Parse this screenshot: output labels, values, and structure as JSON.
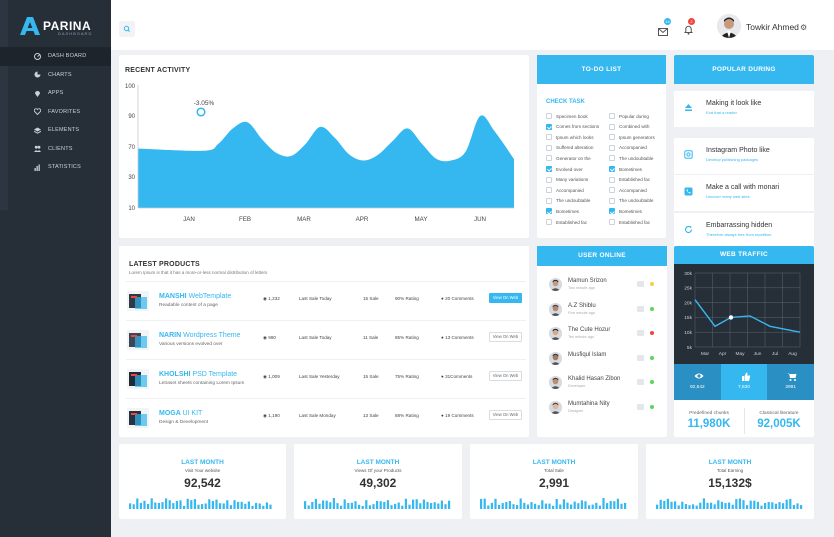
{
  "brand": {
    "name": "PARINA",
    "sub": "DASHBOARD"
  },
  "nav": [
    {
      "label": "DASH BOARD",
      "icon": "dashboard-icon",
      "active": true
    },
    {
      "label": "CHARTS",
      "icon": "pie-chart-icon"
    },
    {
      "label": "APPS",
      "icon": "map-pin-icon"
    },
    {
      "label": "FAVORITES",
      "icon": "heart-icon"
    },
    {
      "label": "ELEMENTS",
      "icon": "layers-icon"
    },
    {
      "label": "CLIENTS",
      "icon": "users-icon"
    },
    {
      "label": "STATISTICS",
      "icon": "bar-chart-icon"
    }
  ],
  "topbar": {
    "mail_badge": "14",
    "bell_badge": "2",
    "user_name": "Towkir Ahmed"
  },
  "colors": {
    "accent": "#35b7f0",
    "sidebar": "#262e38",
    "green": "#5fd35c",
    "red": "#f0463c",
    "yellow": "#f5d23b"
  },
  "recent_activity": {
    "title": "RECENT ACTIVITY",
    "annotation": "-3.05%",
    "chart_data": {
      "type": "area",
      "title": "RECENT ACTIVITY",
      "x_ticks": [
        "JAN",
        "FEB",
        "MAR",
        "APR",
        "MAY",
        "JUN"
      ],
      "y_ticks": [
        100,
        90,
        70,
        30,
        10
      ],
      "x": [
        0,
        0.25,
        0.5,
        0.75,
        1,
        1.25,
        1.5,
        1.75,
        2,
        2.25,
        2.5,
        2.75,
        3,
        3.25,
        3.5,
        3.75,
        4,
        4.25,
        4.5,
        4.75,
        5,
        5.25,
        5.5
      ],
      "values": [
        68,
        65,
        72,
        82,
        86,
        75,
        62,
        58,
        72,
        83,
        76,
        60,
        52,
        60,
        74,
        82,
        72,
        54,
        52,
        64,
        90,
        80,
        54
      ]
    }
  },
  "todo": {
    "title": "TO-DO LIST",
    "sub": "CHECK TASK",
    "left": [
      {
        "label": "Specimen book",
        "checked": false
      },
      {
        "label": "Comes from sections",
        "checked": true
      },
      {
        "label": "Ipsum which looks",
        "checked": false
      },
      {
        "label": "Suffered alteration",
        "checked": false
      },
      {
        "label": "Generator on the",
        "checked": false
      },
      {
        "label": "Evolved over",
        "checked": true
      },
      {
        "label": "Many variations",
        "checked": false
      },
      {
        "label": "Accompanied",
        "checked": false
      },
      {
        "label": "The undoubtable",
        "checked": false
      },
      {
        "label": "Bometimes",
        "checked": true
      },
      {
        "label": "Established fac",
        "checked": false
      }
    ],
    "right": [
      {
        "label": "Popular during",
        "checked": false
      },
      {
        "label": "Combined with",
        "checked": false
      },
      {
        "label": "Ipsum generators",
        "checked": false
      },
      {
        "label": "Accompanied",
        "checked": false
      },
      {
        "label": "The undoubtable",
        "checked": false
      },
      {
        "label": "Bometimes",
        "checked": true
      },
      {
        "label": "Established fac",
        "checked": false
      },
      {
        "label": "Accompanied",
        "checked": false
      },
      {
        "label": "The undoubtable",
        "checked": false
      },
      {
        "label": "Bometimes",
        "checked": true
      },
      {
        "label": "Established fac",
        "checked": false
      }
    ]
  },
  "popular": {
    "title": "POPULAR DURING",
    "items": [
      {
        "title": "Making it look like",
        "sub": "Eod that a reader",
        "icon": "eject-icon"
      },
      {
        "title": "Instagram Photo like",
        "sub": "Develop publishing packages",
        "icon": "instagram-icon"
      },
      {
        "title": "Make a call with monari",
        "sub": "Uncover many web sites",
        "icon": "phone-icon"
      },
      {
        "title": "Embarrassing hidden",
        "sub": "Therefore always free from repetition",
        "icon": "refresh-icon"
      }
    ]
  },
  "products": {
    "title": "LATEST PRODUCTS",
    "sub": "Lorem Ipsum is that it has a more-or-less normal distribution of letters",
    "rows": [
      {
        "name1": "MANSHI",
        "name2": "WebTemplate",
        "desc": "Readable content of a page",
        "views": "1,232",
        "last": "Last Sale Today",
        "sale": "15 Sale",
        "rate": "90%",
        "rate_label": "Rating",
        "comments": "20 Comments",
        "btn": "View On Web",
        "primary": true
      },
      {
        "name1": "NARIN",
        "name2": "Wordpress Theme",
        "desc": "Various versions evolved over",
        "views": "980",
        "last": "Last Sale Today",
        "sale": "11 Sale",
        "rate": "85%",
        "rate_label": "Rating",
        "comments": "13 Comments",
        "btn": "View On Web",
        "primary": false
      },
      {
        "name1": "KHOLSHI",
        "name2": "PSD Template",
        "desc": "Letraset sheets containing Lorem Ipsum",
        "views": "1,009",
        "last": "Last Sale Yesterday",
        "sale": "15 Sale",
        "rate": "75%",
        "rate_label": "Rating",
        "comments": "31Comments",
        "btn": "View On Web",
        "primary": false
      },
      {
        "name1": "MOGA",
        "name2": "UI KIT",
        "desc": "Design & Development",
        "views": "1,190",
        "last": "Last Sale Monday",
        "sale": "13 Sale",
        "rate": "88%",
        "rate_label": "Rating",
        "comments": "19 Comments",
        "btn": "View On Web",
        "primary": false
      }
    ]
  },
  "users": {
    "title": "USER ONLINE",
    "rows": [
      {
        "name": "Mamun Srizon",
        "sub": "Two minute ago",
        "status": "#f5d23b"
      },
      {
        "name": "A.Z Shiblu",
        "sub": "Five minute ago",
        "status": "#5fd35c"
      },
      {
        "name": "The Cute Hozur",
        "sub": "Ten minute ago",
        "status": "#f0463c"
      },
      {
        "name": "Musfiqul Islam",
        "sub": "",
        "status": "#5fd35c"
      },
      {
        "name": "Khalid Hasan Zibon",
        "sub": "Developer",
        "status": "#5fd35c"
      },
      {
        "name": "Mumtahina Nity",
        "sub": "Designer",
        "status": "#5fd35c"
      }
    ]
  },
  "traffic": {
    "title": "WEB TRAFFIC",
    "chart_data": {
      "type": "line",
      "x": [
        "Mar",
        "Apr",
        "May",
        "Jun",
        "Jul",
        "Aug"
      ],
      "y_ticks": [
        "30k",
        "25k",
        "20k",
        "15k",
        "10k",
        "5k"
      ],
      "values": [
        22,
        12,
        15,
        15.5,
        12,
        10
      ],
      "ylim": [
        5,
        30
      ]
    },
    "stats": [
      {
        "value": "92,542",
        "icon": "eye-icon"
      },
      {
        "value": "7,630",
        "icon": "thumbs-up-icon"
      },
      {
        "value": "2991",
        "icon": "cart-icon"
      }
    ],
    "foot": [
      {
        "label": "Predefined chunks",
        "value": "11,980K"
      },
      {
        "label": "Classical literature",
        "value": "92,005K"
      }
    ]
  },
  "stats": [
    {
      "label": "LAST MONTH",
      "sub": "Visit Your website",
      "value": "92,542"
    },
    {
      "label": "LAST MONTH",
      "sub": "Views Of your Products",
      "value": "49,302"
    },
    {
      "label": "LAST MONTH",
      "sub": "Total Sale",
      "value": "2,991"
    },
    {
      "label": "LAST MONTH",
      "sub": "Total Earning",
      "value": "15,132$"
    }
  ]
}
